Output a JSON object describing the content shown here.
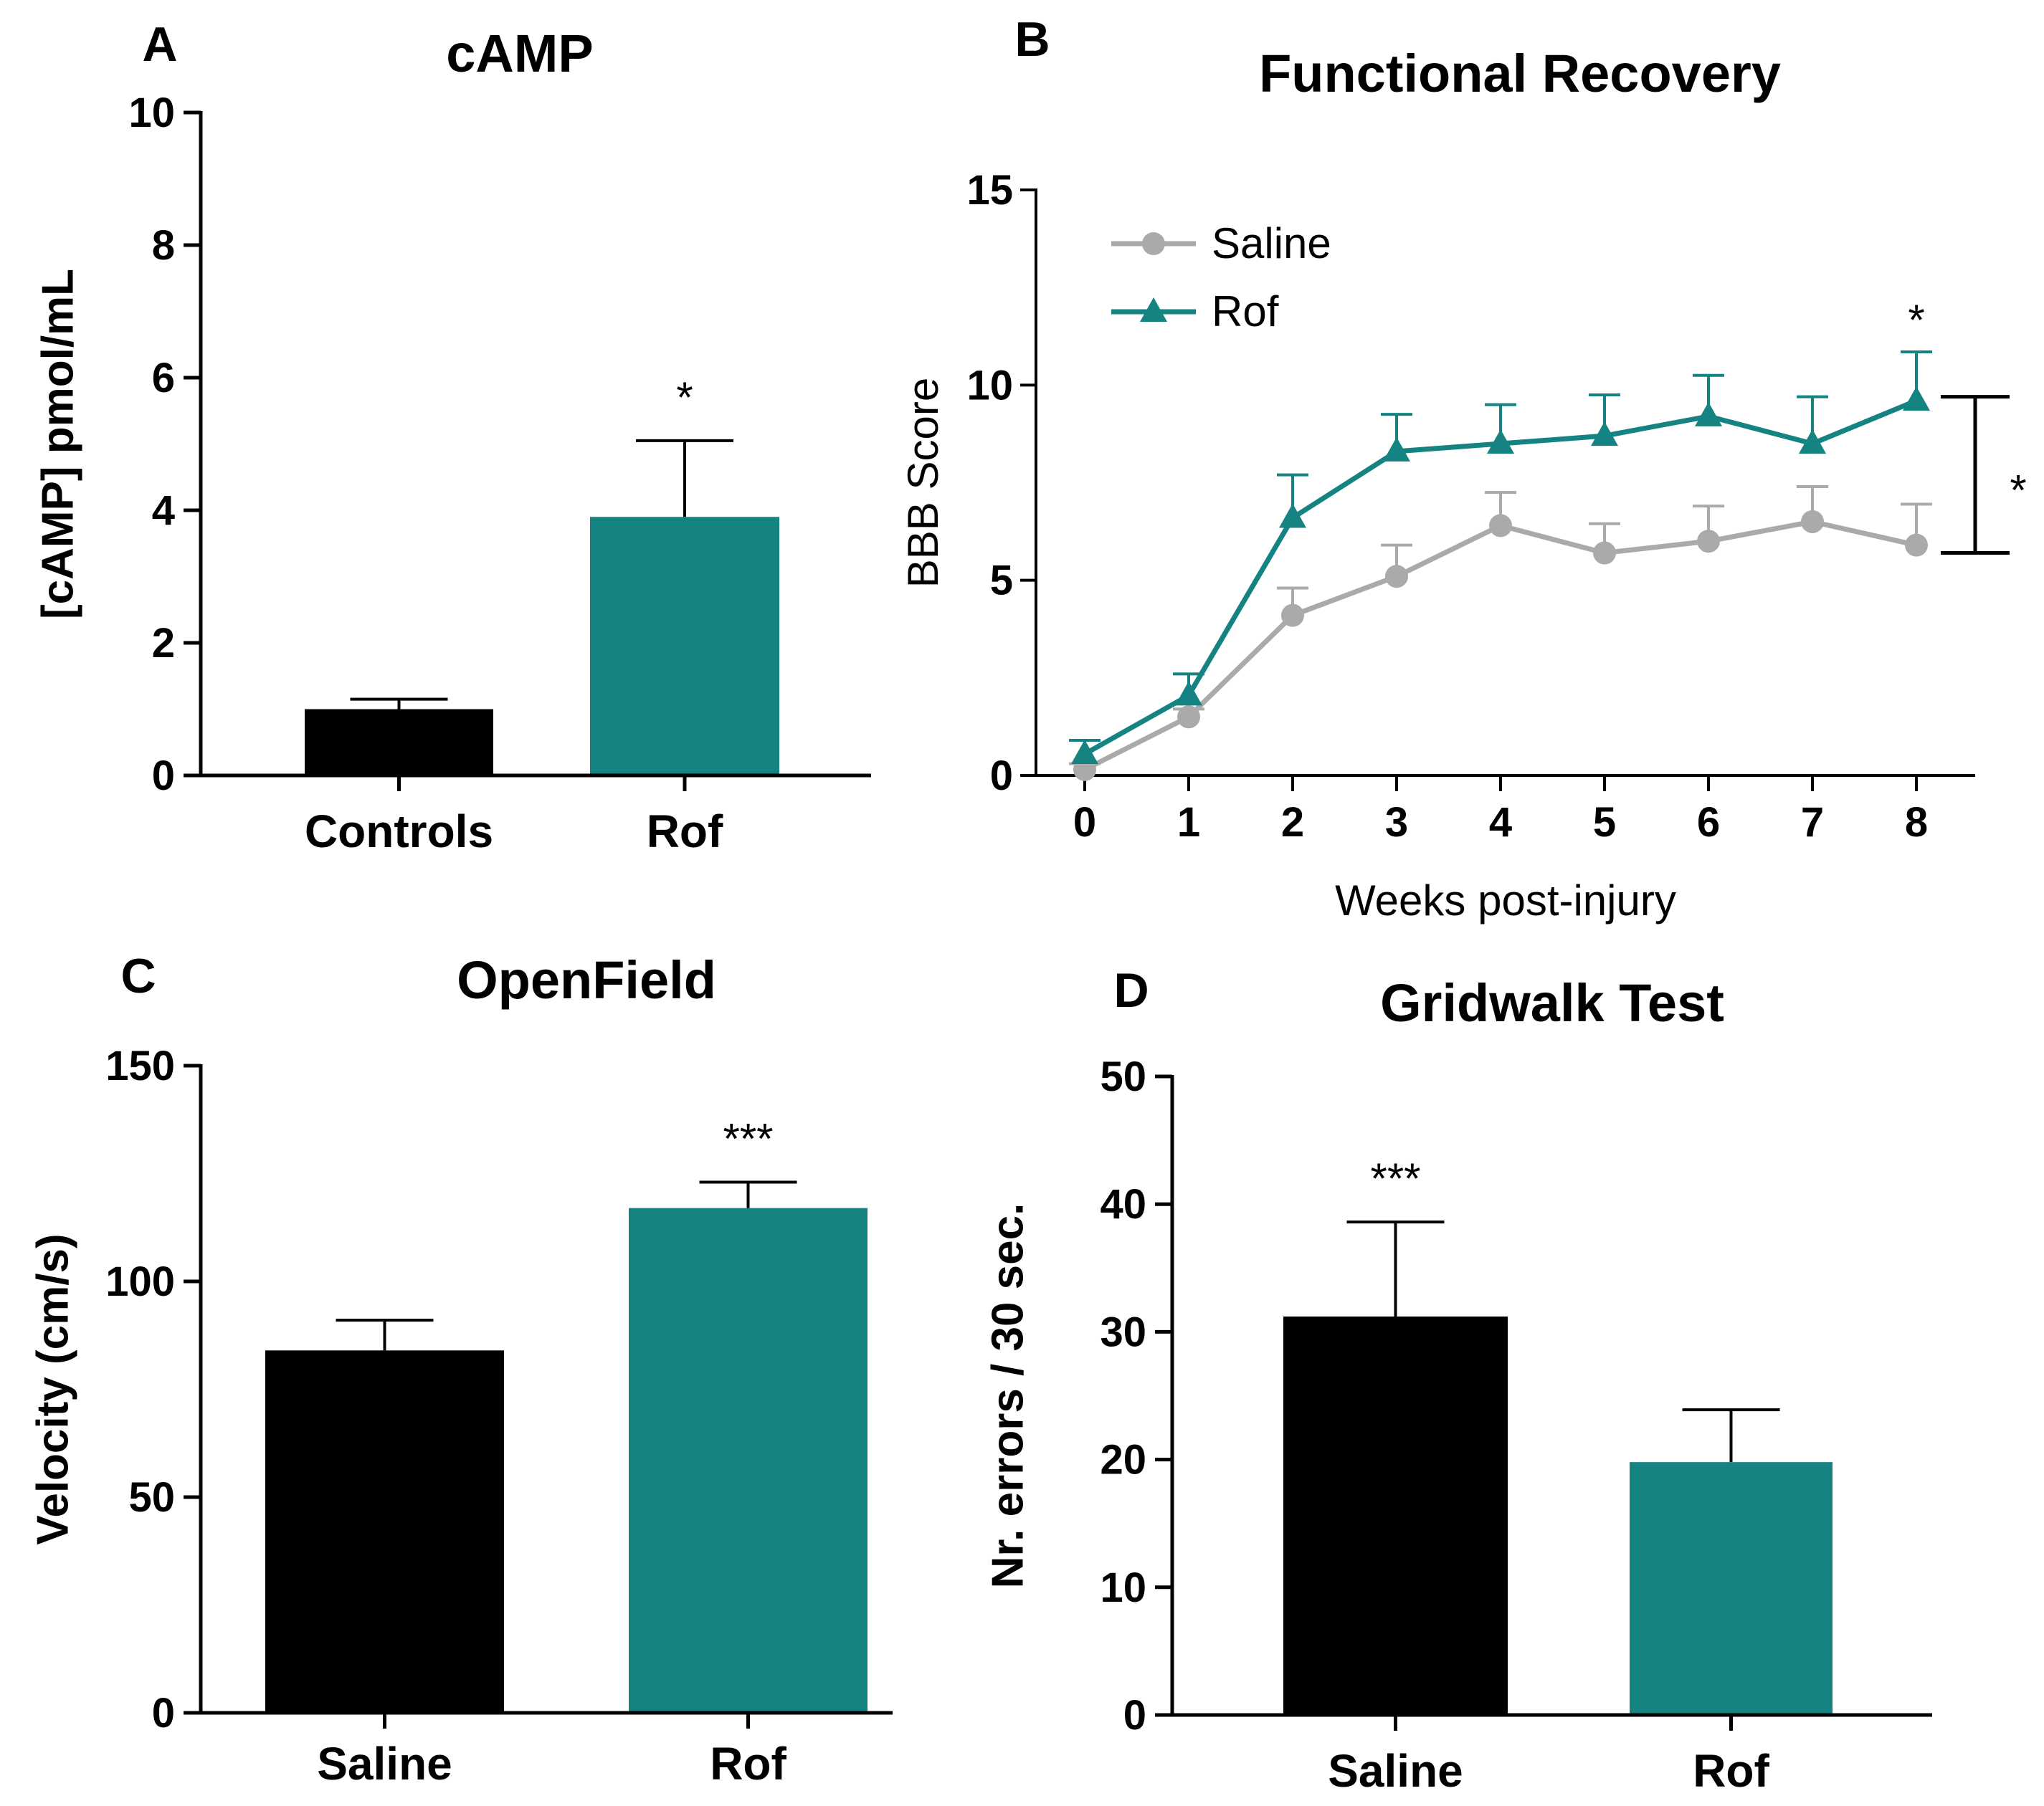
{
  "colors": {
    "black": "#000000",
    "teal": "#148381",
    "gray": "#AAAAAA"
  },
  "chart_data": [
    {
      "id": "A",
      "panel_label": "A",
      "type": "bar",
      "title": "cAMP",
      "xlabel": "",
      "ylabel": "[cAMP] pmol/mL",
      "ylim": [
        0,
        10
      ],
      "yticks": [
        "0",
        "2",
        "4",
        "6",
        "8",
        "10"
      ],
      "categories": [
        "Controls",
        "Rof"
      ],
      "values": [
        1.0,
        3.9
      ],
      "errors": [
        0.15,
        1.15
      ],
      "bar_colors": [
        "#000000",
        "#148381"
      ],
      "significance": [
        "",
        "*"
      ]
    },
    {
      "id": "B",
      "panel_label": "B",
      "type": "line",
      "title": "Functional Recovery",
      "xlabel": "Weeks post-injury",
      "ylabel": "BBB Score",
      "xlim": [
        -0.3,
        8.5
      ],
      "ylim": [
        0,
        15
      ],
      "xticks": [
        "0",
        "1",
        "2",
        "3",
        "4",
        "5",
        "6",
        "7",
        "8"
      ],
      "yticks": [
        "0",
        "5",
        "10",
        "15"
      ],
      "x": [
        0,
        1,
        2,
        3,
        4,
        5,
        6,
        7,
        8
      ],
      "series": [
        {
          "name": "Saline",
          "color": "#AAAAAA",
          "marker": "circle",
          "values": [
            0.15,
            1.5,
            4.1,
            5.1,
            6.4,
            5.7,
            6.0,
            6.5,
            5.9
          ],
          "errors": [
            0.15,
            0.2,
            0.7,
            0.8,
            0.85,
            0.75,
            0.9,
            0.9,
            1.05
          ]
        },
        {
          "name": "Rof",
          "color": "#148381",
          "marker": "triangle",
          "values": [
            0.55,
            2.05,
            6.6,
            8.3,
            8.5,
            8.7,
            9.2,
            8.5,
            9.6
          ],
          "errors": [
            0.35,
            0.55,
            1.1,
            0.95,
            1.0,
            1.05,
            1.05,
            1.2,
            1.25
          ]
        }
      ],
      "point_annotation": {
        "x": 8,
        "text": "*"
      },
      "group_bracket": {
        "from": 5.7,
        "to": 9.7,
        "text": "*"
      },
      "legend_position": "top-left"
    },
    {
      "id": "C",
      "panel_label": "C",
      "type": "bar",
      "title": "OpenField",
      "xlabel": "",
      "ylabel": "Velocity (cm/s)",
      "ylim": [
        0,
        150
      ],
      "yticks": [
        "0",
        "50",
        "100",
        "150"
      ],
      "categories": [
        "Saline",
        "Rof"
      ],
      "values": [
        84,
        117
      ],
      "errors": [
        7,
        6
      ],
      "bar_colors": [
        "#000000",
        "#148381"
      ],
      "significance": [
        "",
        "***"
      ]
    },
    {
      "id": "D",
      "panel_label": "D",
      "type": "bar",
      "title": "Gridwalk Test",
      "xlabel": "",
      "ylabel": "Nr. errors / 30 sec.",
      "ylim": [
        0,
        50
      ],
      "yticks": [
        "0",
        "10",
        "20",
        "30",
        "40",
        "50"
      ],
      "categories": [
        "Saline",
        "Rof"
      ],
      "values": [
        31.2,
        19.8
      ],
      "errors": [
        7.4,
        4.1
      ],
      "bar_colors": [
        "#000000",
        "#148381"
      ],
      "significance": [
        "***",
        ""
      ]
    }
  ]
}
